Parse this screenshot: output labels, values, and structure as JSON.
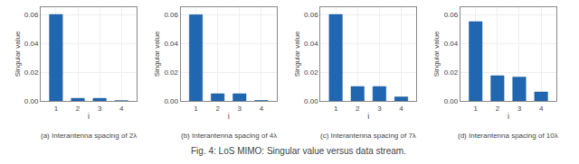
{
  "title": "Fig. 4: LoS MIMO: Singular value versus data stream.",
  "chart_data": [
    {
      "type": "bar",
      "subtitle": "(a) Interantenna spacing of 2λ",
      "x": [
        1,
        2,
        3,
        4
      ],
      "values": [
        0.06,
        0.0018,
        0.0018,
        0.0002
      ],
      "color": "#2166b0",
      "xlabel": "i",
      "ylabel": "Singular value",
      "xlim": [
        0.3,
        4.7
      ],
      "xticks": [
        1,
        2,
        3,
        4
      ],
      "ylim": [
        0,
        0.065
      ],
      "yticks": [
        {
          "value": 0,
          "label": "0.00"
        },
        0.02,
        0.04,
        0.06
      ],
      "grid": true
    },
    {
      "type": "bar",
      "subtitle": "(b) Interantenna spacing of 4λ",
      "x": [
        1,
        2,
        3,
        4
      ],
      "values": [
        0.0598,
        0.005,
        0.005,
        0.0003
      ],
      "color": "#2166b0",
      "xlabel": "i",
      "ylabel": "Singular value",
      "xlim": [
        0.3,
        4.7
      ],
      "xticks": [
        1,
        2,
        3,
        4
      ],
      "ylim": [
        0,
        0.065
      ],
      "yticks": [
        {
          "value": 0,
          "label": "0.00"
        },
        0.02,
        0.04,
        0.06
      ],
      "grid": true
    },
    {
      "type": "bar",
      "subtitle": "(c) Interantenna spacing of 7λ",
      "x": [
        1,
        2,
        3,
        4
      ],
      "values": [
        0.06,
        0.01,
        0.01,
        0.0028
      ],
      "color": "#2166b0",
      "xlabel": "i",
      "ylabel": "Singular value",
      "xlim": [
        0.3,
        4.7
      ],
      "xticks": [
        1,
        2,
        3,
        4
      ],
      "ylim": [
        0,
        0.065
      ],
      "yticks": [
        {
          "value": 0,
          "label": "0.00"
        },
        0.02,
        0.04,
        0.06
      ],
      "grid": true
    },
    {
      "type": "bar",
      "subtitle": "(d) Interantenna spacing of 10λ",
      "x": [
        1,
        2,
        3,
        4
      ],
      "values": [
        0.055,
        0.0175,
        0.0165,
        0.0062
      ],
      "color": "#2166b0",
      "xlabel": "i",
      "ylabel": "Singular value",
      "xlim": [
        0.3,
        4.7
      ],
      "xticks": [
        1,
        2,
        3,
        4
      ],
      "ylim": [
        0,
        0.065
      ],
      "yticks": [
        {
          "value": 0,
          "label": "0.00"
        },
        0.02,
        0.04,
        0.06
      ],
      "grid": true
    }
  ]
}
